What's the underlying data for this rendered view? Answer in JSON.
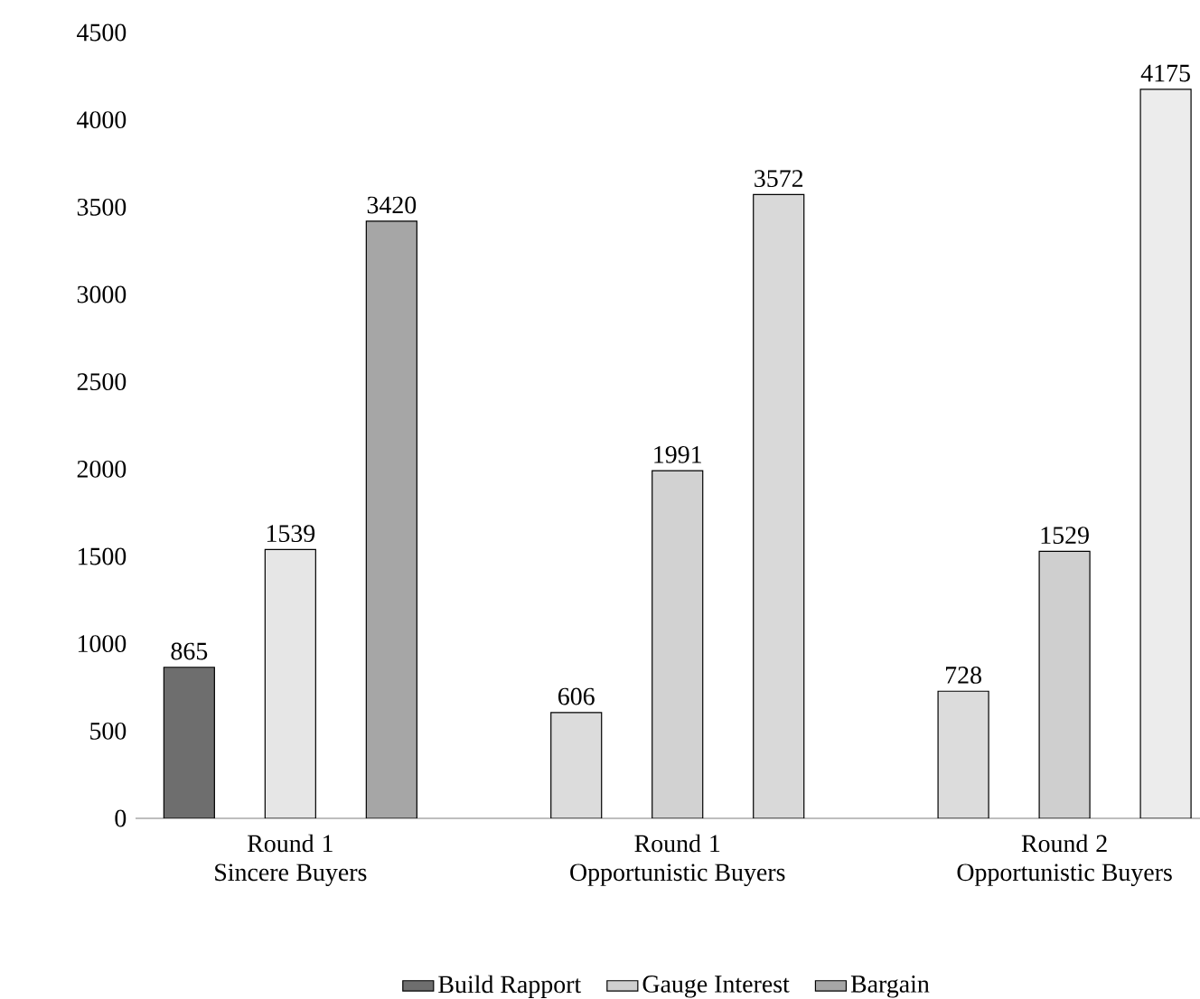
{
  "chart_data": {
    "type": "bar",
    "categories": [
      "Round 1 Sincere Buyers",
      "Round 1 Opportunistic Buyers",
      "Round 2 Opportunistic Buyers"
    ],
    "series": [
      {
        "name": "Build Rapport",
        "color": "#6e6e6e",
        "colors": [
          "#6e6e6e",
          "#dcdcdc",
          "#dcdcdc"
        ],
        "values": [
          865,
          606,
          728
        ]
      },
      {
        "name": "Gauge Interest",
        "color": "#cfcfcf",
        "colors": [
          "#e6e6e6",
          "#d2d2d2",
          "#cfcfcf"
        ],
        "values": [
          1539,
          1991,
          1529
        ]
      },
      {
        "name": "Bargain",
        "color": "#a6a6a6",
        "colors": [
          "#a6a6a6",
          "#d9d9d9",
          "#ececec"
        ],
        "values": [
          3420,
          3572,
          4175
        ]
      }
    ],
    "ylim": [
      0,
      4500
    ],
    "yticks": [
      0,
      500,
      1000,
      1500,
      2000,
      2500,
      3000,
      3500,
      4000,
      4500
    ],
    "data_labels": true,
    "grid": false,
    "legend": "bottom"
  }
}
